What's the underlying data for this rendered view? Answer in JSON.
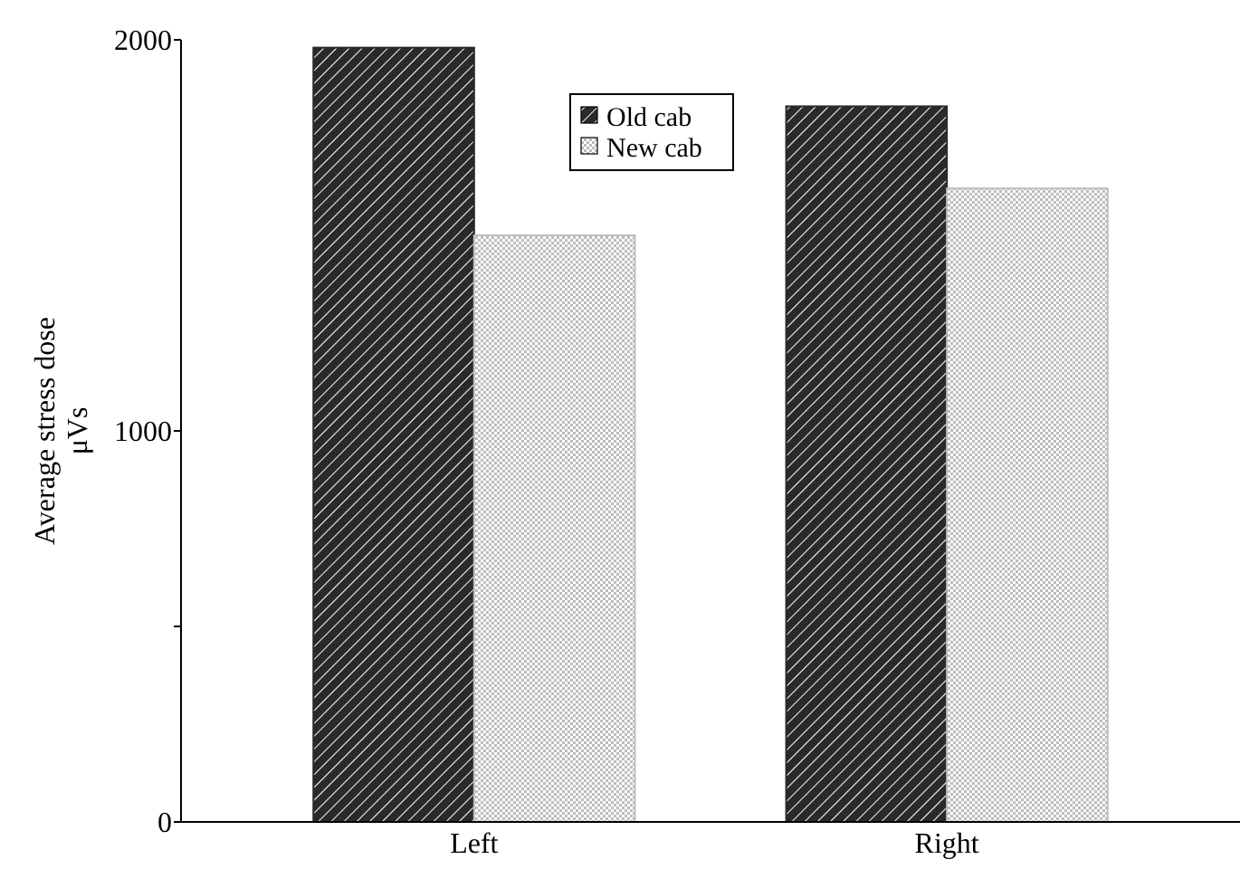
{
  "chart_data": {
    "type": "bar",
    "ylabel": "Average stress dose\nμVs",
    "categories": [
      "Left",
      "Right"
    ],
    "series": [
      {
        "name": "Old cab",
        "color": "#2a2a2a",
        "values": [
          1980,
          1830
        ]
      },
      {
        "name": "New cab",
        "color": "#bdbdbd",
        "values": [
          1500,
          1620
        ]
      }
    ],
    "ylim": [
      0,
      2000
    ],
    "yticks": [
      0,
      {
        "value": 500,
        "label": null
      },
      1000,
      2000
    ],
    "grid": false,
    "legend": "top"
  }
}
